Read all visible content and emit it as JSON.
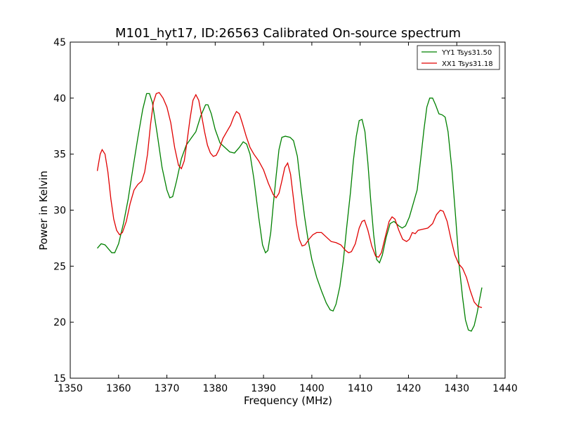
{
  "chart_data": {
    "type": "line",
    "title": "M101_hyt17, ID:26563 Calibrated On-source spectrum",
    "xlabel": "Frequency (MHz)",
    "ylabel": "Power in Kelvin",
    "xlim": [
      1350,
      1440
    ],
    "ylim": [
      15,
      45
    ],
    "xticks": [
      1350,
      1360,
      1370,
      1380,
      1390,
      1400,
      1410,
      1420,
      1430,
      1440
    ],
    "yticks": [
      15,
      20,
      25,
      30,
      35,
      40,
      45
    ],
    "grid": false,
    "legend_position": "top-right",
    "series": [
      {
        "name": "YY1 Tsys31.50",
        "color": "#008000",
        "points": [
          [
            1355.6,
            26.6
          ],
          [
            1356.4,
            27.0
          ],
          [
            1357.2,
            26.9
          ],
          [
            1358.0,
            26.5
          ],
          [
            1358.6,
            26.2
          ],
          [
            1359.2,
            26.2
          ],
          [
            1360.0,
            27.0
          ],
          [
            1361.0,
            28.8
          ],
          [
            1362.0,
            31.0
          ],
          [
            1363.0,
            33.8
          ],
          [
            1364.0,
            36.5
          ],
          [
            1365.0,
            39.0
          ],
          [
            1365.8,
            40.4
          ],
          [
            1366.4,
            40.4
          ],
          [
            1367.0,
            39.6
          ],
          [
            1368.0,
            36.8
          ],
          [
            1369.0,
            33.8
          ],
          [
            1370.0,
            31.8
          ],
          [
            1370.6,
            31.1
          ],
          [
            1371.2,
            31.2
          ],
          [
            1372.0,
            32.6
          ],
          [
            1373.0,
            34.6
          ],
          [
            1374.0,
            35.8
          ],
          [
            1375.0,
            36.4
          ],
          [
            1376.0,
            37.0
          ],
          [
            1377.0,
            38.4
          ],
          [
            1378.0,
            39.4
          ],
          [
            1378.5,
            39.4
          ],
          [
            1379.2,
            38.6
          ],
          [
            1380.0,
            37.2
          ],
          [
            1381.0,
            36.0
          ],
          [
            1382.0,
            35.6
          ],
          [
            1383.0,
            35.2
          ],
          [
            1384.0,
            35.1
          ],
          [
            1385.0,
            35.6
          ],
          [
            1385.8,
            36.1
          ],
          [
            1386.5,
            35.9
          ],
          [
            1387.2,
            35.0
          ],
          [
            1388.0,
            32.8
          ],
          [
            1389.0,
            29.4
          ],
          [
            1389.8,
            26.9
          ],
          [
            1390.4,
            26.2
          ],
          [
            1390.9,
            26.4
          ],
          [
            1391.5,
            28.0
          ],
          [
            1392.0,
            30.4
          ],
          [
            1392.6,
            33.0
          ],
          [
            1393.2,
            35.4
          ],
          [
            1393.8,
            36.5
          ],
          [
            1394.5,
            36.6
          ],
          [
            1395.5,
            36.5
          ],
          [
            1396.2,
            36.2
          ],
          [
            1397.0,
            34.8
          ],
          [
            1397.8,
            31.8
          ],
          [
            1398.5,
            29.4
          ],
          [
            1399.2,
            27.4
          ],
          [
            1400.0,
            25.6
          ],
          [
            1401.0,
            24.0
          ],
          [
            1402.0,
            22.8
          ],
          [
            1403.0,
            21.7
          ],
          [
            1403.8,
            21.1
          ],
          [
            1404.4,
            21.0
          ],
          [
            1405.0,
            21.6
          ],
          [
            1405.8,
            23.2
          ],
          [
            1406.5,
            25.4
          ],
          [
            1407.2,
            28.4
          ],
          [
            1408.0,
            31.6
          ],
          [
            1408.6,
            34.4
          ],
          [
            1409.2,
            36.6
          ],
          [
            1409.8,
            38.0
          ],
          [
            1410.4,
            38.1
          ],
          [
            1411.0,
            37.0
          ],
          [
            1411.6,
            34.2
          ],
          [
            1412.2,
            30.8
          ],
          [
            1412.8,
            27.8
          ],
          [
            1413.4,
            25.6
          ],
          [
            1414.0,
            25.3
          ],
          [
            1414.6,
            26.0
          ],
          [
            1415.4,
            27.6
          ],
          [
            1416.2,
            28.8
          ],
          [
            1417.0,
            29.0
          ],
          [
            1418.0,
            28.6
          ],
          [
            1418.7,
            28.4
          ],
          [
            1419.4,
            28.6
          ],
          [
            1420.2,
            29.4
          ],
          [
            1421.0,
            30.6
          ],
          [
            1421.8,
            31.8
          ],
          [
            1422.5,
            34.4
          ],
          [
            1423.2,
            37.2
          ],
          [
            1423.8,
            39.2
          ],
          [
            1424.4,
            40.0
          ],
          [
            1425.0,
            40.0
          ],
          [
            1425.6,
            39.4
          ],
          [
            1426.3,
            38.6
          ],
          [
            1427.0,
            38.5
          ],
          [
            1427.6,
            38.3
          ],
          [
            1428.2,
            37.0
          ],
          [
            1429.0,
            33.6
          ],
          [
            1429.8,
            29.2
          ],
          [
            1430.5,
            25.0
          ],
          [
            1431.2,
            22.2
          ],
          [
            1431.8,
            20.2
          ],
          [
            1432.4,
            19.3
          ],
          [
            1433.0,
            19.2
          ],
          [
            1433.6,
            19.7
          ],
          [
            1434.2,
            20.8
          ],
          [
            1434.8,
            22.2
          ],
          [
            1435.2,
            23.1
          ]
        ]
      },
      {
        "name": "XX1 Tsys31.18",
        "color": "#e00000",
        "points": [
          [
            1355.6,
            33.5
          ],
          [
            1356.2,
            35.0
          ],
          [
            1356.6,
            35.4
          ],
          [
            1357.2,
            35.0
          ],
          [
            1357.8,
            33.4
          ],
          [
            1358.4,
            31.0
          ],
          [
            1359.0,
            29.2
          ],
          [
            1359.6,
            28.2
          ],
          [
            1360.2,
            27.8
          ],
          [
            1360.8,
            28.0
          ],
          [
            1361.6,
            29.0
          ],
          [
            1362.4,
            30.6
          ],
          [
            1363.2,
            31.8
          ],
          [
            1364.0,
            32.3
          ],
          [
            1364.8,
            32.6
          ],
          [
            1365.4,
            33.4
          ],
          [
            1366.0,
            35.0
          ],
          [
            1366.6,
            37.6
          ],
          [
            1367.2,
            39.6
          ],
          [
            1367.8,
            40.4
          ],
          [
            1368.4,
            40.5
          ],
          [
            1369.2,
            40.0
          ],
          [
            1370.0,
            39.2
          ],
          [
            1370.8,
            37.8
          ],
          [
            1371.6,
            35.6
          ],
          [
            1372.4,
            34.0
          ],
          [
            1373.0,
            33.7
          ],
          [
            1373.6,
            34.4
          ],
          [
            1374.2,
            36.2
          ],
          [
            1374.8,
            38.2
          ],
          [
            1375.4,
            39.8
          ],
          [
            1376.0,
            40.3
          ],
          [
            1376.6,
            39.8
          ],
          [
            1377.2,
            38.4
          ],
          [
            1377.8,
            37.0
          ],
          [
            1378.4,
            35.8
          ],
          [
            1379.0,
            35.1
          ],
          [
            1379.6,
            34.8
          ],
          [
            1380.2,
            34.9
          ],
          [
            1380.8,
            35.4
          ],
          [
            1381.6,
            36.4
          ],
          [
            1382.4,
            37.0
          ],
          [
            1383.2,
            37.6
          ],
          [
            1383.8,
            38.3
          ],
          [
            1384.4,
            38.8
          ],
          [
            1385.0,
            38.6
          ],
          [
            1385.6,
            37.8
          ],
          [
            1386.4,
            36.6
          ],
          [
            1387.2,
            35.6
          ],
          [
            1388.0,
            35.0
          ],
          [
            1389.0,
            34.4
          ],
          [
            1390.0,
            33.6
          ],
          [
            1391.0,
            32.4
          ],
          [
            1392.0,
            31.4
          ],
          [
            1392.6,
            31.1
          ],
          [
            1393.2,
            31.5
          ],
          [
            1393.8,
            32.6
          ],
          [
            1394.4,
            33.8
          ],
          [
            1395.0,
            34.2
          ],
          [
            1395.6,
            33.2
          ],
          [
            1396.2,
            31.0
          ],
          [
            1396.8,
            28.8
          ],
          [
            1397.4,
            27.4
          ],
          [
            1398.0,
            26.8
          ],
          [
            1398.6,
            26.9
          ],
          [
            1399.4,
            27.4
          ],
          [
            1400.2,
            27.8
          ],
          [
            1401.0,
            28.0
          ],
          [
            1402.0,
            28.0
          ],
          [
            1403.0,
            27.6
          ],
          [
            1404.0,
            27.2
          ],
          [
            1405.0,
            27.1
          ],
          [
            1406.0,
            26.9
          ],
          [
            1407.0,
            26.4
          ],
          [
            1407.6,
            26.2
          ],
          [
            1408.2,
            26.3
          ],
          [
            1409.0,
            27.0
          ],
          [
            1409.8,
            28.4
          ],
          [
            1410.4,
            29.0
          ],
          [
            1410.9,
            29.1
          ],
          [
            1411.6,
            28.2
          ],
          [
            1412.4,
            26.8
          ],
          [
            1413.2,
            25.9
          ],
          [
            1413.8,
            25.8
          ],
          [
            1414.4,
            26.2
          ],
          [
            1415.2,
            27.6
          ],
          [
            1416.0,
            29.0
          ],
          [
            1416.6,
            29.4
          ],
          [
            1417.2,
            29.2
          ],
          [
            1418.0,
            28.2
          ],
          [
            1418.8,
            27.4
          ],
          [
            1419.6,
            27.2
          ],
          [
            1420.2,
            27.4
          ],
          [
            1420.8,
            28.0
          ],
          [
            1421.4,
            27.9
          ],
          [
            1422.0,
            28.2
          ],
          [
            1423.0,
            28.3
          ],
          [
            1424.0,
            28.4
          ],
          [
            1425.0,
            28.8
          ],
          [
            1425.8,
            29.6
          ],
          [
            1426.6,
            30.0
          ],
          [
            1427.2,
            29.9
          ],
          [
            1428.0,
            29.0
          ],
          [
            1428.8,
            27.4
          ],
          [
            1429.6,
            26.0
          ],
          [
            1430.4,
            25.2
          ],
          [
            1431.2,
            24.8
          ],
          [
            1432.0,
            24.0
          ],
          [
            1432.8,
            22.8
          ],
          [
            1433.6,
            21.8
          ],
          [
            1434.4,
            21.4
          ],
          [
            1435.2,
            21.3
          ]
        ]
      }
    ]
  }
}
